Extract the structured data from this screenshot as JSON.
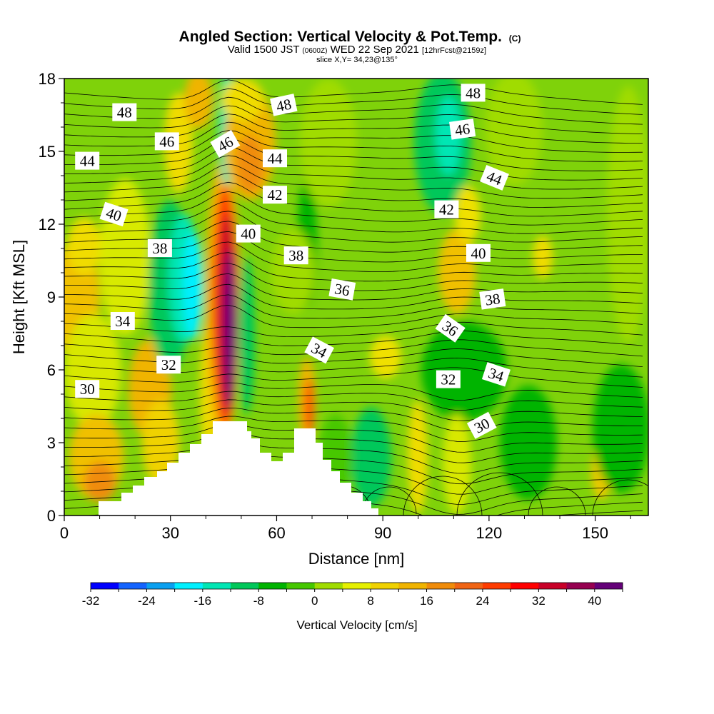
{
  "chart_data": {
    "type": "heatmap",
    "title": "Angled Section: Vertical Velocity & Pot.Temp.",
    "title_suffix": "(C)",
    "subtitle_main_a": "Valid 1500 JST",
    "subtitle_small_a": "(0600Z)",
    "subtitle_main_b": "WED 22 Sep 2021",
    "subtitle_small_b": "[12hrFcst@2159z]",
    "subtitle2": "slice X,Y= 34,23@135°",
    "xlabel": "Distance [nm]",
    "ylabel": "Height [Kft MSL]",
    "xlim": [
      0,
      165
    ],
    "ylim": [
      0,
      18
    ],
    "x_ticks": [
      0,
      30,
      60,
      90,
      120,
      150
    ],
    "y_ticks": [
      0,
      3,
      6,
      9,
      12,
      15,
      18
    ],
    "colorbar": {
      "label": "Vertical Velocity [cm/s]",
      "min": -32,
      "max": 44,
      "step": 4,
      "tick_values": [
        -32,
        -24,
        -16,
        -8,
        0,
        8,
        16,
        24,
        32,
        40
      ],
      "tick_labels": [
        "-32",
        "-24",
        "-16",
        "-8",
        "0",
        "8",
        "16",
        "24",
        "32",
        "40"
      ],
      "colors": [
        "#0000ff",
        "#1464ff",
        "#0aa0f0",
        "#00f0ff",
        "#00e6b4",
        "#00c85a",
        "#00b400",
        "#46c800",
        "#a0dc00",
        "#e6f000",
        "#f0d200",
        "#f0b400",
        "#f08c0a",
        "#f06414",
        "#ff3c00",
        "#ff0000",
        "#c80028",
        "#960050",
        "#640078"
      ]
    },
    "theta_contour_labels": [
      {
        "text": "48",
        "x": 17,
        "y": 16.6,
        "rot": 0
      },
      {
        "text": "48",
        "x": 62,
        "y": 16.9,
        "rot": -12
      },
      {
        "text": "48",
        "x": 115.5,
        "y": 17.4,
        "rot": 0
      },
      {
        "text": "46",
        "x": 29,
        "y": 15.4,
        "rot": 0
      },
      {
        "text": "46",
        "x": 45.5,
        "y": 15.3,
        "rot": -30
      },
      {
        "text": "46",
        "x": 112.5,
        "y": 15.9,
        "rot": -8
      },
      {
        "text": "44",
        "x": 6.5,
        "y": 14.6,
        "rot": 0
      },
      {
        "text": "44",
        "x": 59.5,
        "y": 14.7,
        "rot": 0
      },
      {
        "text": "44",
        "x": 121.5,
        "y": 13.9,
        "rot": 22
      },
      {
        "text": "42",
        "x": 59.5,
        "y": 13.2,
        "rot": 0
      },
      {
        "text": "42",
        "x": 108,
        "y": 12.6,
        "rot": 0
      },
      {
        "text": "40",
        "x": 14,
        "y": 12.4,
        "rot": 18
      },
      {
        "text": "40",
        "x": 52,
        "y": 11.6,
        "rot": 0
      },
      {
        "text": "40",
        "x": 117,
        "y": 10.8,
        "rot": 0
      },
      {
        "text": "38",
        "x": 27,
        "y": 11.0,
        "rot": 0
      },
      {
        "text": "38",
        "x": 65.5,
        "y": 10.7,
        "rot": 0
      },
      {
        "text": "38",
        "x": 121,
        "y": 8.9,
        "rot": -8
      },
      {
        "text": "36",
        "x": 78.5,
        "y": 9.3,
        "rot": 10
      },
      {
        "text": "36",
        "x": 109,
        "y": 7.7,
        "rot": 35
      },
      {
        "text": "34",
        "x": 16.5,
        "y": 8.0,
        "rot": 0
      },
      {
        "text": "34",
        "x": 72,
        "y": 6.8,
        "rot": 28
      },
      {
        "text": "34",
        "x": 122,
        "y": 5.8,
        "rot": 18
      },
      {
        "text": "32",
        "x": 29.5,
        "y": 6.2,
        "rot": 0
      },
      {
        "text": "32",
        "x": 108.5,
        "y": 5.6,
        "rot": 0
      },
      {
        "text": "30",
        "x": 6.5,
        "y": 5.2,
        "rot": 0
      },
      {
        "text": "30",
        "x": 118,
        "y": 3.7,
        "rot": -28
      }
    ]
  }
}
